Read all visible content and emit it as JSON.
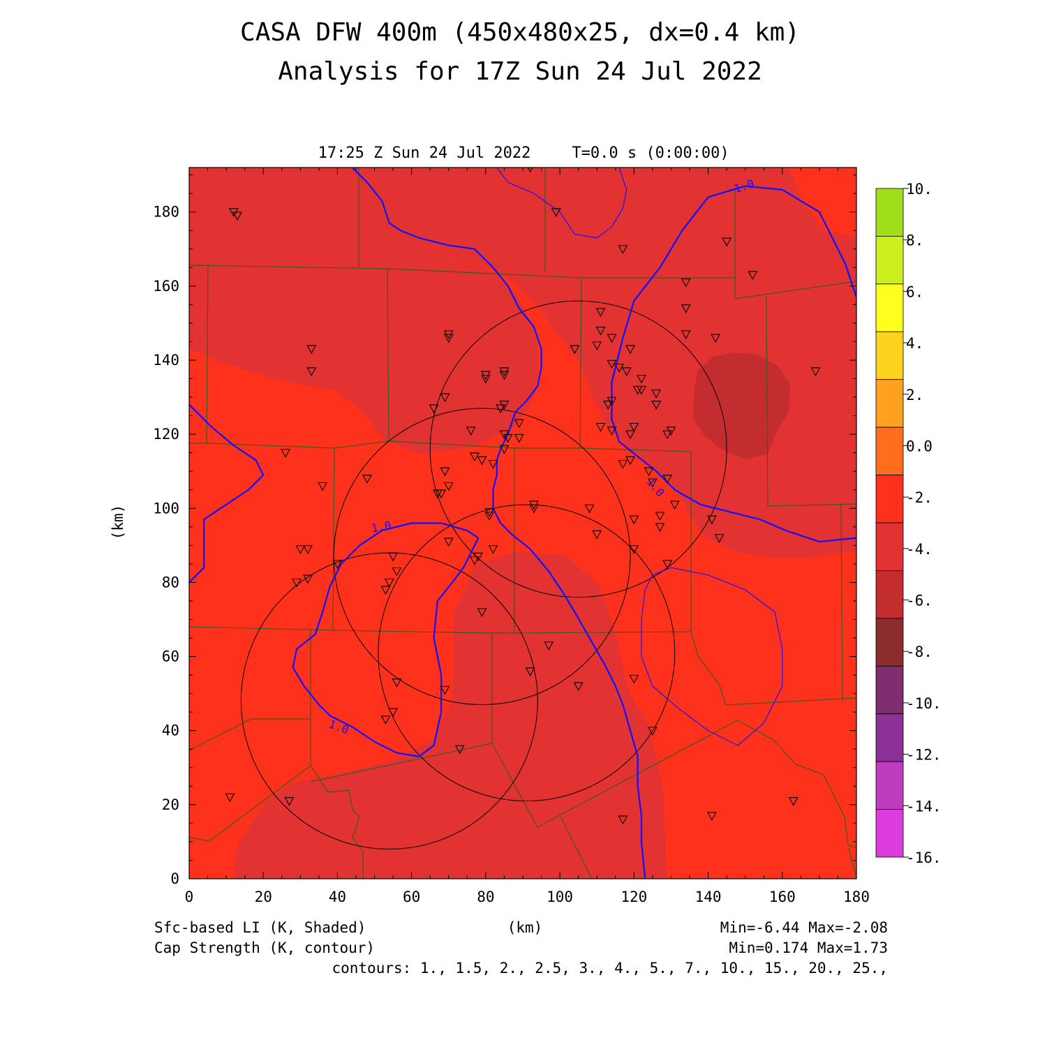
{
  "title": "CASA DFW 400m (450x480x25, dx=0.4 km)",
  "subtitle": "Analysis for 17Z Sun 24 Jul 2022",
  "valid_time": "17:25 Z Sun 24 Jul 2022",
  "sim_time": "T=0.0 s (0:00:00)",
  "footer": {
    "field1": "Sfc-based LI (K, Shaded)",
    "field2": "Cap Strength (K, contour)",
    "xunit": "(km)",
    "range1": "Min=-6.44 Max=-2.08",
    "range2": "Min=0.174 Max=1.73",
    "contours": "contours: 1., 1.5, 2., 2.5, 3., 4., 5., 7., 10., 15., 20., 25.,"
  },
  "colors": {
    "bg_field": "#fe321c",
    "field_mid": "#e23232",
    "field_dark": "#c42d30",
    "contour": "#1010ff",
    "county": "#3c5a1e"
  },
  "chart_data": {
    "type": "heatmap",
    "title": "CASA DFW 400m (450x480x25, dx=0.4 km)",
    "subtitle": "Analysis for 17Z Sun 24 Jul 2022",
    "xlabel": "(km)",
    "ylabel": "(km)",
    "xlim": [
      0,
      180
    ],
    "ylim": [
      0,
      192
    ],
    "xticks": [
      "0",
      "20",
      "40",
      "60",
      "80",
      "100",
      "120",
      "140",
      "160",
      "180"
    ],
    "yticks": [
      "0",
      "20",
      "40",
      "60",
      "80",
      "100",
      "120",
      "140",
      "160",
      "180"
    ],
    "shaded_field": "Sfc-based LI (K, Shaded)",
    "contour_field": "Cap Strength (K, contour)",
    "field_min": -6.44,
    "field_max": -2.08,
    "contour_min": 0.174,
    "contour_max": 1.73,
    "contour_labels": [
      "1.0",
      "1.0",
      "1.0",
      "1.0"
    ],
    "colorbar": {
      "labels": [
        "10.",
        "8.",
        "6.",
        "4.",
        "2.",
        "0.0",
        "-2.",
        "-4.",
        "-6.",
        "-8.",
        "-10.",
        "-12.",
        "-14.",
        "-16."
      ],
      "colors": [
        "#a0e01a",
        "#ccf01e",
        "#ffff1e",
        "#ffd21e",
        "#ffa01e",
        "#ff6e1e",
        "#fe321c",
        "#e23232",
        "#c42d30",
        "#8c2d2d",
        "#7e2d6e",
        "#8c3296",
        "#be3cbe",
        "#dc3cdc"
      ]
    },
    "radar_rings": [
      {
        "cx": 105,
        "cy": 116,
        "r": 40
      },
      {
        "cx": 79,
        "cy": 87,
        "r": 40
      },
      {
        "cx": 91,
        "cy": 61,
        "r": 40
      },
      {
        "cx": 54,
        "cy": 48,
        "r": 40
      }
    ],
    "stations": [
      [
        12,
        180
      ],
      [
        13,
        179
      ],
      [
        33,
        143
      ],
      [
        33,
        137
      ],
      [
        26,
        115
      ],
      [
        36,
        106
      ],
      [
        30,
        89
      ],
      [
        32,
        89
      ],
      [
        29,
        80
      ],
      [
        32,
        81
      ],
      [
        48,
        108
      ],
      [
        40,
        85
      ],
      [
        55,
        87
      ],
      [
        56,
        83
      ],
      [
        53,
        78
      ],
      [
        54,
        80
      ],
      [
        56,
        53
      ],
      [
        53,
        43
      ],
      [
        55,
        45
      ],
      [
        11,
        22
      ],
      [
        27,
        21
      ],
      [
        70,
        146
      ],
      [
        70,
        147
      ],
      [
        69,
        130
      ],
      [
        66,
        127
      ],
      [
        76,
        121
      ],
      [
        80,
        135
      ],
      [
        80,
        136
      ],
      [
        85,
        136
      ],
      [
        85,
        137
      ],
      [
        84,
        127
      ],
      [
        85,
        128
      ],
      [
        86,
        119
      ],
      [
        85,
        120
      ],
      [
        85,
        116
      ],
      [
        89,
        119
      ],
      [
        89,
        123
      ],
      [
        77,
        114
      ],
      [
        79,
        113
      ],
      [
        82,
        112
      ],
      [
        69,
        110
      ],
      [
        70,
        106
      ],
      [
        67,
        104
      ],
      [
        68,
        104
      ],
      [
        81,
        98
      ],
      [
        81,
        99
      ],
      [
        82,
        89
      ],
      [
        77,
        86
      ],
      [
        78,
        87
      ],
      [
        70,
        91
      ],
      [
        79,
        72
      ],
      [
        69,
        51
      ],
      [
        73,
        35
      ],
      [
        92,
        56
      ],
      [
        97,
        63
      ],
      [
        93,
        101
      ],
      [
        93,
        100
      ],
      [
        99,
        180
      ],
      [
        104,
        143
      ],
      [
        92,
        192
      ],
      [
        117,
        170
      ],
      [
        111,
        153
      ],
      [
        111,
        148
      ],
      [
        110,
        144
      ],
      [
        114,
        146
      ],
      [
        114,
        139
      ],
      [
        116,
        138
      ],
      [
        118,
        137
      ],
      [
        122,
        135
      ],
      [
        121,
        132
      ],
      [
        122,
        132
      ],
      [
        126,
        131
      ],
      [
        126,
        128
      ],
      [
        119,
        143
      ],
      [
        114,
        129
      ],
      [
        113,
        128
      ],
      [
        111,
        122
      ],
      [
        114,
        121
      ],
      [
        119,
        120
      ],
      [
        120,
        122
      ],
      [
        117,
        112
      ],
      [
        119,
        113
      ],
      [
        124,
        110
      ],
      [
        125,
        107
      ],
      [
        129,
        108
      ],
      [
        130,
        121
      ],
      [
        129,
        120
      ],
      [
        131,
        101
      ],
      [
        127,
        98
      ],
      [
        127,
        95
      ],
      [
        120,
        97
      ],
      [
        120,
        89
      ],
      [
        108,
        100
      ],
      [
        110,
        93
      ],
      [
        105,
        52
      ],
      [
        120,
        54
      ],
      [
        125,
        40
      ],
      [
        117,
        16
      ],
      [
        129,
        85
      ],
      [
        134,
        154
      ],
      [
        134,
        161
      ],
      [
        134,
        147
      ],
      [
        142,
        146
      ],
      [
        145,
        172
      ],
      [
        152,
        163
      ],
      [
        169,
        137
      ],
      [
        141,
        97
      ],
      [
        143,
        92
      ],
      [
        141,
        17
      ],
      [
        163,
        21
      ]
    ],
    "contour_lines": [
      {
        "value": "1.0",
        "points": [
          [
            44,
            192
          ],
          [
            48,
            188
          ],
          [
            52,
            183
          ],
          [
            54,
            177
          ],
          [
            57,
            175
          ],
          [
            62,
            173
          ],
          [
            70,
            171
          ],
          [
            77,
            170
          ],
          [
            82,
            165
          ],
          [
            86,
            160
          ],
          [
            89,
            154
          ],
          [
            93,
            149
          ],
          [
            95,
            143
          ],
          [
            95,
            138
          ],
          [
            94,
            133
          ],
          [
            91,
            129
          ],
          [
            88,
            126
          ],
          [
            86,
            120
          ],
          [
            84,
            116
          ],
          [
            83,
            113
          ],
          [
            83,
            109
          ],
          [
            82,
            105
          ],
          [
            82,
            100
          ],
          [
            84,
            96
          ],
          [
            87,
            93
          ],
          [
            92,
            89
          ],
          [
            97,
            83
          ],
          [
            101,
            77
          ],
          [
            104,
            72
          ],
          [
            108,
            65
          ],
          [
            112,
            58
          ],
          [
            115,
            52
          ],
          [
            117,
            47
          ],
          [
            119,
            40
          ],
          [
            121,
            33
          ],
          [
            121,
            25
          ],
          [
            122,
            17
          ],
          [
            122,
            10
          ],
          [
            123,
            0
          ]
        ]
      },
      {
        "value": "1.0",
        "points": [
          [
            180,
            157
          ],
          [
            177,
            166
          ],
          [
            170,
            180
          ],
          [
            160,
            186
          ],
          [
            150,
            187
          ],
          [
            140,
            184
          ],
          [
            133,
            175
          ],
          [
            127,
            165
          ],
          [
            120,
            156
          ],
          [
            117,
            146
          ],
          [
            114,
            134
          ],
          [
            114,
            124
          ],
          [
            116,
            118
          ],
          [
            121,
            114
          ],
          [
            126,
            110
          ],
          [
            131,
            105
          ],
          [
            138,
            101
          ],
          [
            146,
            99
          ],
          [
            154,
            97
          ],
          [
            161,
            94
          ],
          [
            170,
            91
          ],
          [
            180,
            92
          ]
        ]
      },
      {
        "value": "1.0",
        "points": [
          [
            0,
            128
          ],
          [
            6,
            122
          ],
          [
            12,
            117
          ],
          [
            18,
            113
          ],
          [
            20,
            109
          ],
          [
            16,
            105
          ],
          [
            10,
            101
          ],
          [
            4,
            97
          ],
          [
            4,
            90
          ],
          [
            4,
            84
          ],
          [
            0,
            80
          ]
        ]
      },
      {
        "value": "1.0",
        "points": [
          [
            78,
            92
          ],
          [
            75,
            94
          ],
          [
            68,
            96
          ],
          [
            60,
            96
          ],
          [
            52,
            94
          ],
          [
            46,
            90
          ],
          [
            41,
            85
          ],
          [
            38,
            79
          ],
          [
            36,
            72
          ],
          [
            34,
            66
          ],
          [
            29,
            62
          ],
          [
            28,
            57
          ],
          [
            31,
            52
          ],
          [
            35,
            47
          ],
          [
            38,
            44
          ],
          [
            44,
            41
          ],
          [
            50,
            37
          ],
          [
            56,
            34
          ],
          [
            62,
            33
          ],
          [
            66,
            36
          ],
          [
            68,
            45
          ],
          [
            68,
            55
          ],
          [
            66,
            65
          ],
          [
            67,
            75
          ],
          [
            71,
            80
          ],
          [
            74,
            84
          ],
          [
            77,
            90
          ],
          [
            78,
            92
          ]
        ]
      },
      {
        "value": "1.5",
        "points": [
          [
            83,
            192
          ],
          [
            86,
            188
          ],
          [
            93,
            185
          ],
          [
            100,
            180
          ],
          [
            104,
            174
          ],
          [
            110,
            173
          ],
          [
            114,
            176
          ],
          [
            117,
            181
          ],
          [
            118,
            186
          ],
          [
            116,
            192
          ]
        ]
      },
      {
        "value": "1.5",
        "points": [
          [
            125,
            82
          ],
          [
            130,
            84
          ],
          [
            140,
            82
          ],
          [
            150,
            78
          ],
          [
            158,
            72
          ],
          [
            160,
            62
          ],
          [
            160,
            52
          ],
          [
            155,
            42
          ],
          [
            148,
            36
          ],
          [
            140,
            40
          ],
          [
            132,
            46
          ],
          [
            125,
            52
          ],
          [
            122,
            60
          ],
          [
            122,
            70
          ],
          [
            123,
            78
          ],
          [
            125,
            82
          ]
        ]
      }
    ]
  }
}
